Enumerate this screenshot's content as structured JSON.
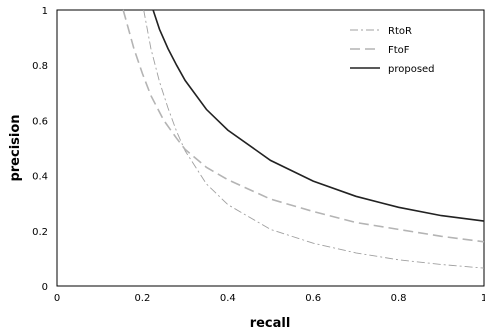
{
  "chart_data": {
    "type": "line",
    "xlabel": "recall",
    "ylabel": "precision",
    "xlim": [
      0,
      1
    ],
    "ylim": [
      0,
      1
    ],
    "xticks": [
      0,
      0.2,
      0.4,
      0.6,
      0.8,
      1
    ],
    "yticks": [
      0,
      0.2,
      0.4,
      0.6,
      0.8,
      1
    ],
    "x_tick_labels": [
      "0",
      "0.2",
      "0.4",
      "0.6",
      "0.8",
      "1"
    ],
    "y_tick_labels": [
      "0",
      "0.2",
      "0.4",
      "0.6",
      "0.8",
      "1"
    ],
    "grid": false,
    "legend_position": "top-right",
    "series": [
      {
        "name": "RtoR",
        "style": "dash-dot",
        "color": "#a0a0a0",
        "x": [
          0.203,
          0.22,
          0.24,
          0.26,
          0.28,
          0.3,
          0.35,
          0.4,
          0.5,
          0.6,
          0.7,
          0.8,
          0.9,
          1.0
        ],
        "y": [
          1.0,
          0.86,
          0.74,
          0.645,
          0.56,
          0.49,
          0.37,
          0.295,
          0.205,
          0.155,
          0.12,
          0.095,
          0.078,
          0.065
        ]
      },
      {
        "name": "FtoF",
        "style": "dashed",
        "color": "#b4b4b4",
        "x": [
          0.155,
          0.18,
          0.2,
          0.22,
          0.25,
          0.28,
          0.3,
          0.35,
          0.4,
          0.5,
          0.6,
          0.7,
          0.8,
          0.9,
          1.0
        ],
        "y": [
          1.0,
          0.86,
          0.77,
          0.69,
          0.6,
          0.535,
          0.495,
          0.43,
          0.385,
          0.315,
          0.27,
          0.23,
          0.205,
          0.18,
          0.16
        ]
      },
      {
        "name": "proposed",
        "style": "solid",
        "color": "#222222",
        "x": [
          0.225,
          0.24,
          0.26,
          0.28,
          0.3,
          0.35,
          0.4,
          0.5,
          0.6,
          0.7,
          0.8,
          0.9,
          1.0
        ],
        "y": [
          1.0,
          0.93,
          0.86,
          0.8,
          0.745,
          0.64,
          0.565,
          0.455,
          0.38,
          0.325,
          0.285,
          0.255,
          0.235
        ]
      }
    ]
  }
}
